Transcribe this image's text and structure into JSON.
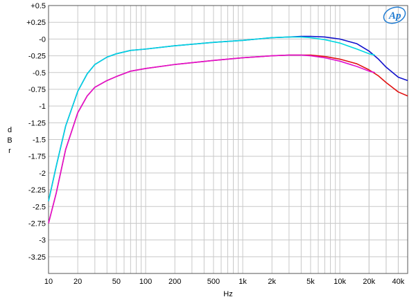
{
  "chart_data": {
    "type": "line",
    "title": "",
    "xlabel": "Hz",
    "ylabel": "dBr",
    "x_scale": "log",
    "xlim": [
      10,
      50000
    ],
    "ylim": [
      -3.5,
      0.5
    ],
    "grid": true,
    "legend": "none",
    "x_ticks": [
      10,
      20,
      50,
      100,
      200,
      500,
      1000,
      2000,
      5000,
      10000,
      20000,
      40000
    ],
    "x_tick_labels": [
      "10",
      "20",
      "50",
      "100",
      "200",
      "500",
      "1k",
      "2k",
      "5k",
      "10k",
      "20k",
      "40k"
    ],
    "y_ticks": [
      0.5,
      0.25,
      0,
      -0.25,
      -0.5,
      -0.75,
      -1,
      -1.25,
      -1.5,
      -1.75,
      -2,
      -2.25,
      -2.5,
      -2.75,
      -3,
      -3.25
    ],
    "y_tick_labels": [
      "+0.5",
      "+0.25",
      "-0",
      "-0.25",
      "-0.5",
      "-0.75",
      "-1",
      "-1.25",
      "-1.5",
      "-1.75",
      "-2",
      "-2.25",
      "-2.5",
      "-2.75",
      "-3",
      "-3.25"
    ],
    "series": [
      {
        "color": "#1010cc",
        "x": [
          10,
          12,
          15,
          20,
          25,
          30,
          40,
          50,
          70,
          100,
          200,
          500,
          1000,
          2000,
          3000,
          4000,
          5000,
          7000,
          10000,
          15000,
          20000,
          25000,
          30000,
          40000,
          50000
        ],
        "y": [
          -2.42,
          -1.9,
          -1.3,
          -0.78,
          -0.52,
          -0.38,
          -0.27,
          -0.22,
          -0.17,
          -0.15,
          -0.1,
          -0.05,
          -0.02,
          0.02,
          0.03,
          0.04,
          0.04,
          0.03,
          0.0,
          -0.07,
          -0.18,
          -0.3,
          -0.42,
          -0.57,
          -0.62
        ]
      },
      {
        "color": "#00d8e0",
        "x": [
          10,
          12,
          15,
          20,
          25,
          30,
          40,
          50,
          70,
          100,
          200,
          500,
          1000,
          2000,
          3000,
          4000,
          5000,
          7000,
          10000,
          15000,
          20000,
          23000
        ],
        "y": [
          -2.42,
          -1.9,
          -1.3,
          -0.78,
          -0.52,
          -0.38,
          -0.27,
          -0.22,
          -0.17,
          -0.15,
          -0.1,
          -0.05,
          -0.02,
          0.02,
          0.03,
          0.03,
          0.02,
          -0.01,
          -0.06,
          -0.15,
          -0.22,
          -0.24
        ]
      },
      {
        "color": "#e01010",
        "x": [
          10,
          12,
          15,
          20,
          25,
          30,
          40,
          50,
          70,
          100,
          200,
          500,
          1000,
          2000,
          3000,
          4000,
          5000,
          7000,
          10000,
          15000,
          20000,
          25000,
          30000,
          40000,
          50000
        ],
        "y": [
          -2.75,
          -2.3,
          -1.65,
          -1.1,
          -0.85,
          -0.72,
          -0.62,
          -0.56,
          -0.48,
          -0.44,
          -0.38,
          -0.32,
          -0.28,
          -0.25,
          -0.24,
          -0.24,
          -0.24,
          -0.26,
          -0.3,
          -0.37,
          -0.46,
          -0.55,
          -0.65,
          -0.79,
          -0.85
        ]
      },
      {
        "color": "#e010d0",
        "x": [
          10,
          12,
          15,
          20,
          25,
          30,
          40,
          50,
          70,
          100,
          200,
          500,
          1000,
          2000,
          3000,
          4000,
          5000,
          7000,
          10000,
          15000,
          20000,
          23000
        ],
        "y": [
          -2.75,
          -2.3,
          -1.65,
          -1.1,
          -0.85,
          -0.72,
          -0.62,
          -0.56,
          -0.48,
          -0.44,
          -0.38,
          -0.32,
          -0.28,
          -0.25,
          -0.24,
          -0.24,
          -0.25,
          -0.28,
          -0.33,
          -0.41,
          -0.48,
          -0.5
        ]
      }
    ]
  },
  "logo": {
    "text": "Ap"
  }
}
